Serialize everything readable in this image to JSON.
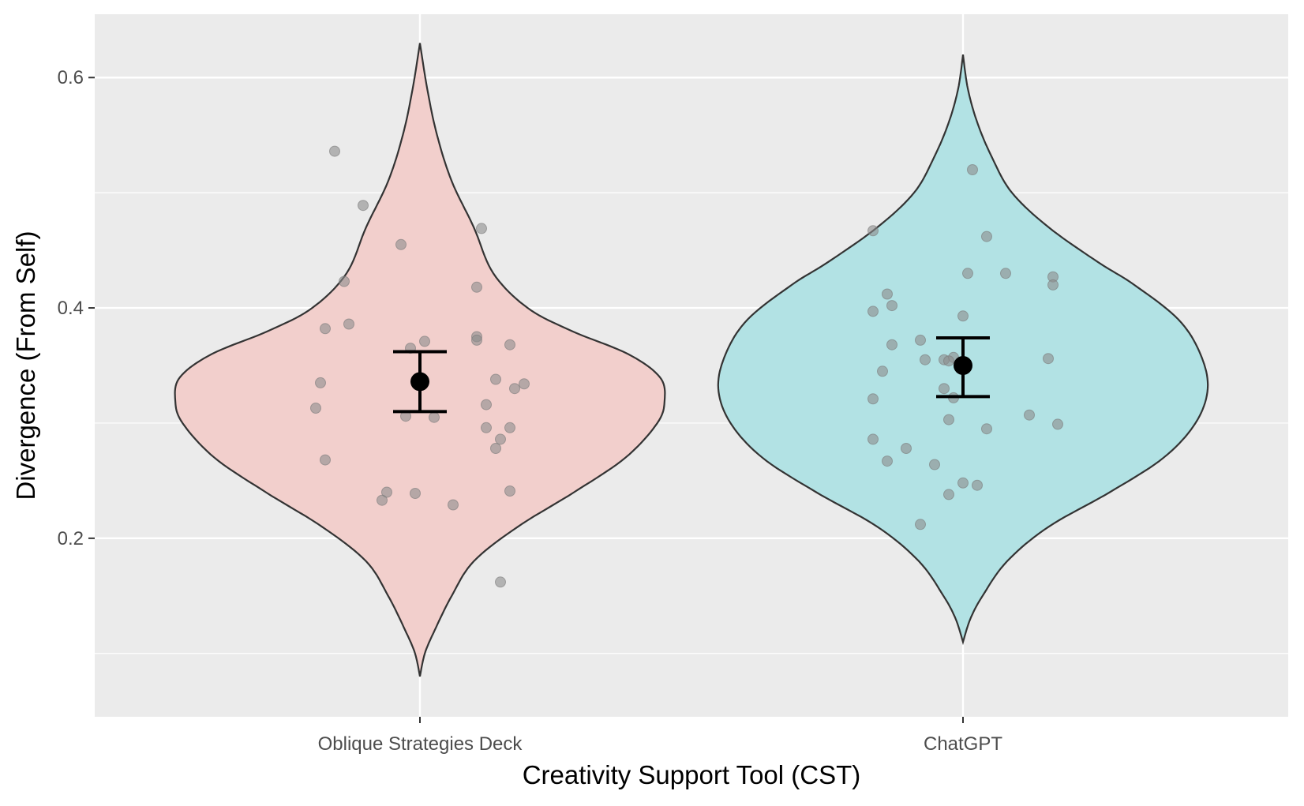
{
  "chart_data": {
    "type": "violin",
    "title": "",
    "xlabel": "Creativity Support Tool (CST)",
    "ylabel": "Divergence (From Self)",
    "categories": [
      "Oblique Strategies Deck",
      "ChatGPT"
    ],
    "yticks": [
      0.2,
      0.4,
      0.6
    ],
    "ytick_labels": [
      "0.2",
      "0.4",
      "0.6"
    ],
    "ylim": [
      0.045,
      0.655
    ],
    "grid": true,
    "legend": "none",
    "colors": {
      "panel": "#ebebeb",
      "grid": "#ffffff",
      "violin_fills": [
        "#f2cfcc",
        "#b2e2e4"
      ],
      "violin_stroke": "#333333",
      "points": "#8c8c8c",
      "summary": "#000000"
    },
    "series": [
      {
        "category": "Oblique Strategies Deck",
        "min": 0.08,
        "max": 0.63,
        "density": [
          [
            0.08,
            0.0
          ],
          [
            0.1,
            0.02
          ],
          [
            0.12,
            0.06
          ],
          [
            0.15,
            0.13
          ],
          [
            0.18,
            0.22
          ],
          [
            0.21,
            0.4
          ],
          [
            0.24,
            0.63
          ],
          [
            0.27,
            0.84
          ],
          [
            0.3,
            0.97
          ],
          [
            0.32,
            1.0
          ],
          [
            0.34,
            0.98
          ],
          [
            0.36,
            0.85
          ],
          [
            0.38,
            0.62
          ],
          [
            0.4,
            0.44
          ],
          [
            0.43,
            0.3
          ],
          [
            0.47,
            0.22
          ],
          [
            0.51,
            0.13
          ],
          [
            0.55,
            0.07
          ],
          [
            0.59,
            0.03
          ],
          [
            0.63,
            0.0
          ]
        ],
        "mean": 0.336,
        "ci": [
          0.31,
          0.362
        ],
        "points": [
          [
            -0.18,
            0.536
          ],
          [
            -0.12,
            0.489
          ],
          [
            0.13,
            0.469
          ],
          [
            -0.04,
            0.455
          ],
          [
            -0.16,
            0.423
          ],
          [
            0.12,
            0.418
          ],
          [
            -0.15,
            0.386
          ],
          [
            -0.2,
            0.382
          ],
          [
            0.12,
            0.375
          ],
          [
            0.12,
            0.372
          ],
          [
            0.01,
            0.371
          ],
          [
            0.19,
            0.368
          ],
          [
            -0.02,
            0.365
          ],
          [
            -0.21,
            0.335
          ],
          [
            0.16,
            0.338
          ],
          [
            0.2,
            0.33
          ],
          [
            0.22,
            0.334
          ],
          [
            0.14,
            0.316
          ],
          [
            -0.22,
            0.313
          ],
          [
            -0.03,
            0.306
          ],
          [
            0.03,
            0.305
          ],
          [
            0.14,
            0.296
          ],
          [
            0.19,
            0.296
          ],
          [
            0.17,
            0.286
          ],
          [
            0.16,
            0.278
          ],
          [
            -0.2,
            0.268
          ],
          [
            -0.07,
            0.24
          ],
          [
            -0.01,
            0.239
          ],
          [
            0.19,
            0.241
          ],
          [
            -0.08,
            0.233
          ],
          [
            0.07,
            0.229
          ],
          [
            0.17,
            0.162
          ]
        ]
      },
      {
        "category": "ChatGPT",
        "min": 0.11,
        "max": 0.62,
        "density": [
          [
            0.11,
            0.0
          ],
          [
            0.13,
            0.03
          ],
          [
            0.15,
            0.08
          ],
          [
            0.18,
            0.18
          ],
          [
            0.21,
            0.35
          ],
          [
            0.24,
            0.6
          ],
          [
            0.27,
            0.82
          ],
          [
            0.3,
            0.95
          ],
          [
            0.33,
            1.0
          ],
          [
            0.36,
            0.97
          ],
          [
            0.39,
            0.88
          ],
          [
            0.42,
            0.7
          ],
          [
            0.44,
            0.55
          ],
          [
            0.47,
            0.35
          ],
          [
            0.5,
            0.2
          ],
          [
            0.53,
            0.12
          ],
          [
            0.56,
            0.06
          ],
          [
            0.59,
            0.02
          ],
          [
            0.62,
            0.0
          ]
        ],
        "mean": 0.35,
        "ci": [
          0.323,
          0.374
        ],
        "points": [
          [
            0.02,
            0.52
          ],
          [
            -0.19,
            0.467
          ],
          [
            0.05,
            0.462
          ],
          [
            0.01,
            0.43
          ],
          [
            0.09,
            0.43
          ],
          [
            0.19,
            0.427
          ],
          [
            0.19,
            0.42
          ],
          [
            -0.16,
            0.412
          ],
          [
            -0.15,
            0.402
          ],
          [
            -0.19,
            0.397
          ],
          [
            0.0,
            0.393
          ],
          [
            -0.09,
            0.372
          ],
          [
            -0.15,
            0.368
          ],
          [
            -0.02,
            0.357
          ],
          [
            -0.04,
            0.355
          ],
          [
            -0.03,
            0.354
          ],
          [
            -0.08,
            0.355
          ],
          [
            0.18,
            0.356
          ],
          [
            -0.17,
            0.345
          ],
          [
            -0.04,
            0.33
          ],
          [
            -0.02,
            0.322
          ],
          [
            -0.19,
            0.321
          ],
          [
            0.14,
            0.307
          ],
          [
            -0.03,
            0.303
          ],
          [
            0.2,
            0.299
          ],
          [
            0.05,
            0.295
          ],
          [
            -0.19,
            0.286
          ],
          [
            -0.12,
            0.278
          ],
          [
            -0.16,
            0.267
          ],
          [
            -0.06,
            0.264
          ],
          [
            0.0,
            0.248
          ],
          [
            0.03,
            0.246
          ],
          [
            -0.03,
            0.238
          ],
          [
            -0.09,
            0.212
          ]
        ]
      }
    ]
  }
}
